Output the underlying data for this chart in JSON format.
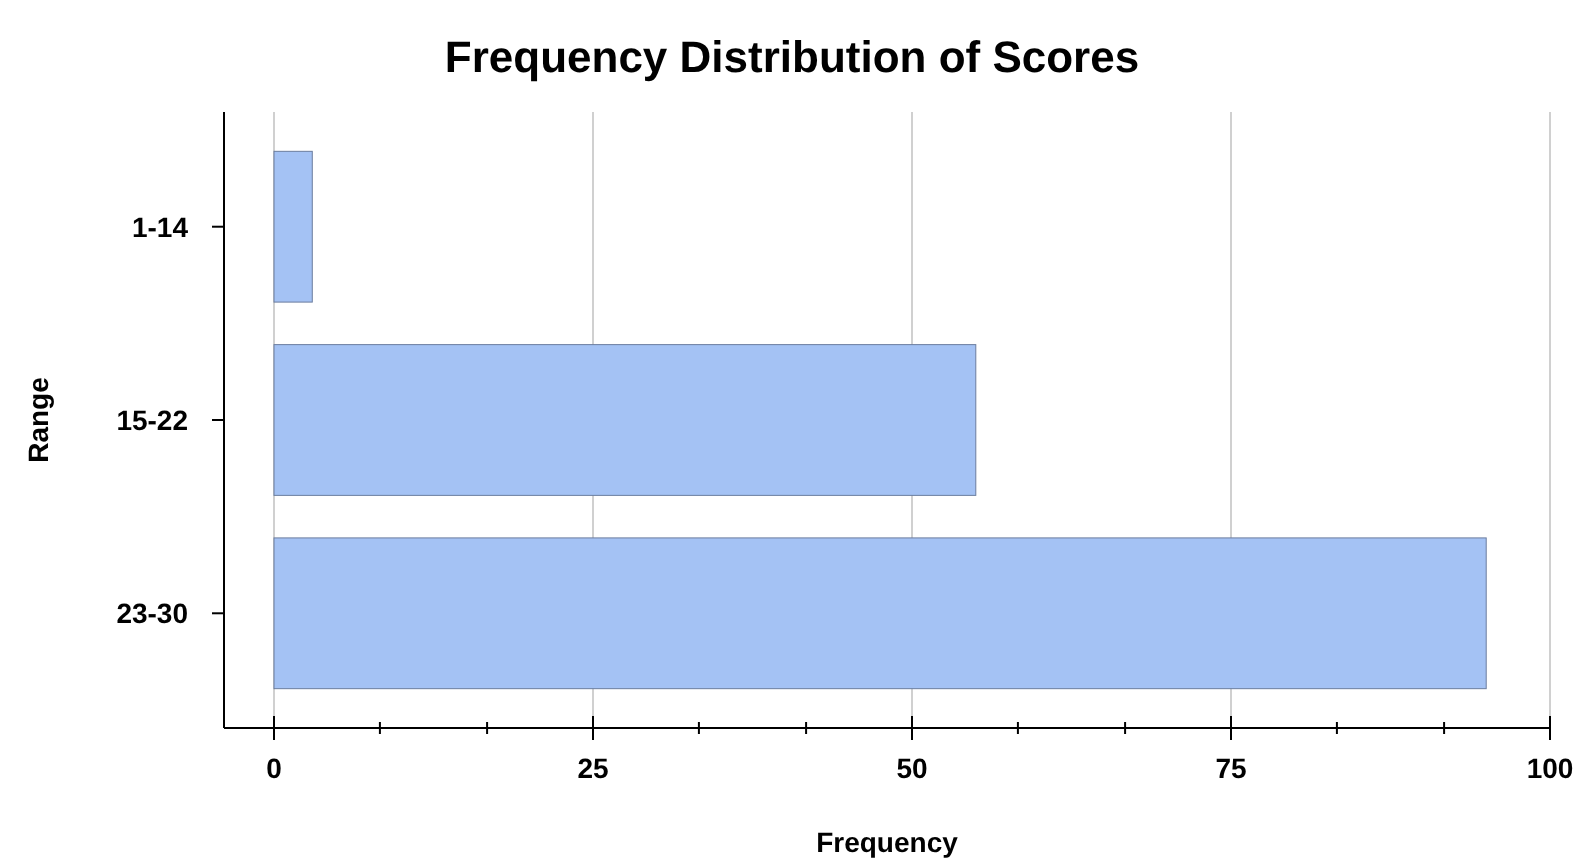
{
  "chart_data": {
    "type": "bar",
    "orientation": "horizontal",
    "title": "Frequency Distribution of Scores",
    "xlabel": "Frequency",
    "ylabel": "Range",
    "categories": [
      "1-14",
      "15-22",
      "23-30"
    ],
    "values": [
      3,
      55,
      95
    ],
    "color": "#a4c2f4",
    "xlim": [
      0,
      100
    ],
    "xticks": [
      0,
      {
        "value": 8.3,
        "label": null
      },
      {
        "value": 16.7,
        "label": null
      },
      25,
      {
        "value": 33.3,
        "label": null
      },
      {
        "value": 41.7,
        "label": null
      },
      50,
      {
        "value": 58.3,
        "label": null
      },
      {
        "value": 66.7,
        "label": null
      },
      75,
      {
        "value": 83.3,
        "label": null
      },
      {
        "value": 91.7,
        "label": null
      },
      100
    ],
    "grid": "x"
  }
}
